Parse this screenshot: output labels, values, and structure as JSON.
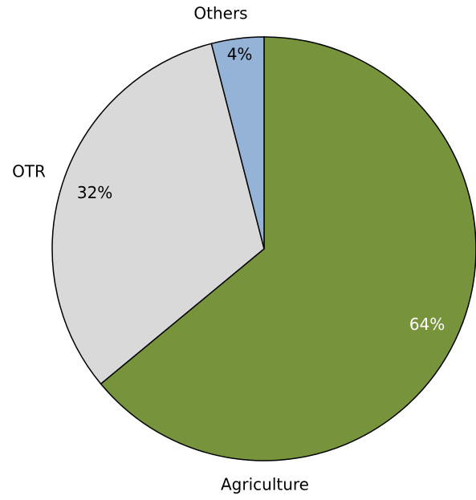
{
  "chart_data": {
    "type": "pie",
    "categories": [
      "Agriculture",
      "OTR",
      "Others"
    ],
    "values": [
      64,
      32,
      4
    ],
    "value_labels": [
      "64%",
      "32%",
      "4%"
    ],
    "colors": [
      "#77933c",
      "#d9d9d9",
      "#95b3d7"
    ]
  }
}
